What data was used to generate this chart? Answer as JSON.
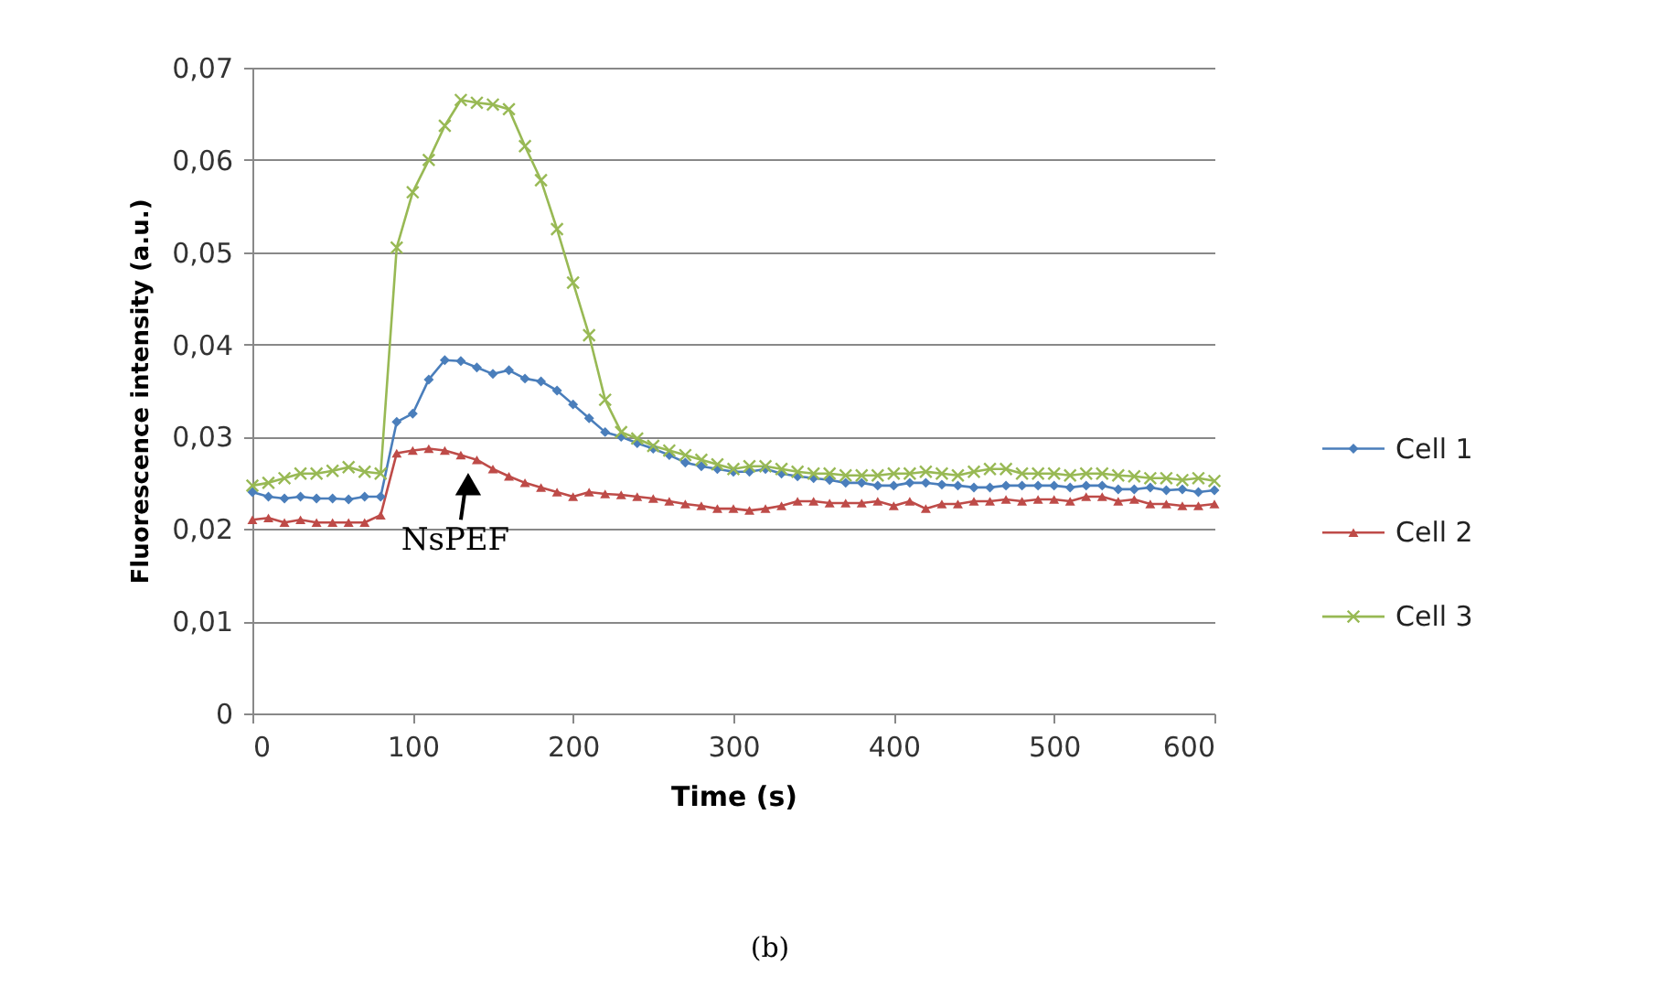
{
  "chart_data": {
    "type": "line",
    "xlabel": "Time (s)",
    "ylabel": "Fluorescence intensity (a.u.)",
    "x": [
      0,
      10,
      20,
      30,
      40,
      50,
      60,
      70,
      80,
      90,
      100,
      110,
      120,
      130,
      140,
      150,
      160,
      170,
      180,
      190,
      200,
      210,
      220,
      230,
      240,
      250,
      260,
      270,
      280,
      290,
      300,
      310,
      320,
      330,
      340,
      350,
      360,
      370,
      380,
      390,
      400,
      410,
      420,
      430,
      440,
      450,
      460,
      470,
      480,
      490,
      500,
      510,
      520,
      530,
      540,
      550,
      560,
      570,
      580,
      590,
      600
    ],
    "series": [
      {
        "name": "Cell 1",
        "color": "#4a7ebb",
        "marker": "diamond",
        "values": [
          0.024,
          0.0235,
          0.0233,
          0.0235,
          0.0233,
          0.0233,
          0.0232,
          0.0235,
          0.0235,
          0.0316,
          0.0325,
          0.0362,
          0.0383,
          0.0382,
          0.0375,
          0.0368,
          0.0372,
          0.0363,
          0.036,
          0.035,
          0.0335,
          0.032,
          0.0305,
          0.03,
          0.0293,
          0.0287,
          0.028,
          0.0272,
          0.0268,
          0.0265,
          0.0262,
          0.0262,
          0.0265,
          0.026,
          0.0257,
          0.0255,
          0.0253,
          0.025,
          0.025,
          0.0247,
          0.0247,
          0.025,
          0.025,
          0.0248,
          0.0247,
          0.0245,
          0.0245,
          0.0247,
          0.0247,
          0.0247,
          0.0247,
          0.0245,
          0.0247,
          0.0247,
          0.0243,
          0.0243,
          0.0245,
          0.0242,
          0.0243,
          0.024,
          0.0242
        ]
      },
      {
        "name": "Cell 2",
        "color": "#be4b48",
        "marker": "triangle",
        "values": [
          0.021,
          0.0212,
          0.0207,
          0.021,
          0.0207,
          0.0207,
          0.0207,
          0.0207,
          0.0215,
          0.0282,
          0.0285,
          0.0287,
          0.0285,
          0.028,
          0.0275,
          0.0265,
          0.0257,
          0.025,
          0.0245,
          0.024,
          0.0235,
          0.024,
          0.0238,
          0.0237,
          0.0235,
          0.0233,
          0.023,
          0.0227,
          0.0225,
          0.0222,
          0.0222,
          0.022,
          0.0222,
          0.0225,
          0.023,
          0.023,
          0.0228,
          0.0228,
          0.0228,
          0.023,
          0.0225,
          0.023,
          0.0222,
          0.0227,
          0.0227,
          0.023,
          0.023,
          0.0232,
          0.023,
          0.0232,
          0.0232,
          0.023,
          0.0235,
          0.0235,
          0.023,
          0.0232,
          0.0227,
          0.0227,
          0.0225,
          0.0225,
          0.0227
        ]
      },
      {
        "name": "Cell 3",
        "color": "#98b954",
        "marker": "cross",
        "values": [
          0.0247,
          0.025,
          0.0255,
          0.026,
          0.026,
          0.0263,
          0.0267,
          0.0262,
          0.026,
          0.0505,
          0.0565,
          0.06,
          0.0637,
          0.0665,
          0.0662,
          0.066,
          0.0655,
          0.0615,
          0.0578,
          0.0525,
          0.0467,
          0.041,
          0.034,
          0.0305,
          0.0298,
          0.029,
          0.0285,
          0.028,
          0.0275,
          0.027,
          0.0265,
          0.0268,
          0.0268,
          0.0265,
          0.0262,
          0.026,
          0.026,
          0.0258,
          0.0258,
          0.0258,
          0.026,
          0.026,
          0.0262,
          0.026,
          0.0258,
          0.0262,
          0.0265,
          0.0265,
          0.026,
          0.026,
          0.026,
          0.0258,
          0.026,
          0.026,
          0.0258,
          0.0257,
          0.0255,
          0.0255,
          0.0253,
          0.0255,
          0.0252
        ]
      }
    ],
    "xlim": [
      0,
      600
    ],
    "xticks": [
      0,
      100,
      200,
      300,
      400,
      500,
      600
    ],
    "ylim": [
      0,
      0.07
    ],
    "yticks": [
      0,
      {
        "value": 0.01,
        "label": "0,01"
      },
      {
        "value": 0.02,
        "label": "0,02"
      },
      {
        "value": 0.03,
        "label": "0,03"
      },
      {
        "value": 0.04,
        "label": "0,04"
      },
      {
        "value": 0.05,
        "label": "0,05"
      },
      {
        "value": 0.06,
        "label": "0,06"
      },
      {
        "value": 0.07,
        "label": "0,07"
      }
    ],
    "grid": "y",
    "legend": "right",
    "line_style": "solid",
    "annotations": [
      "NsPEF",
      "(b)"
    ]
  }
}
